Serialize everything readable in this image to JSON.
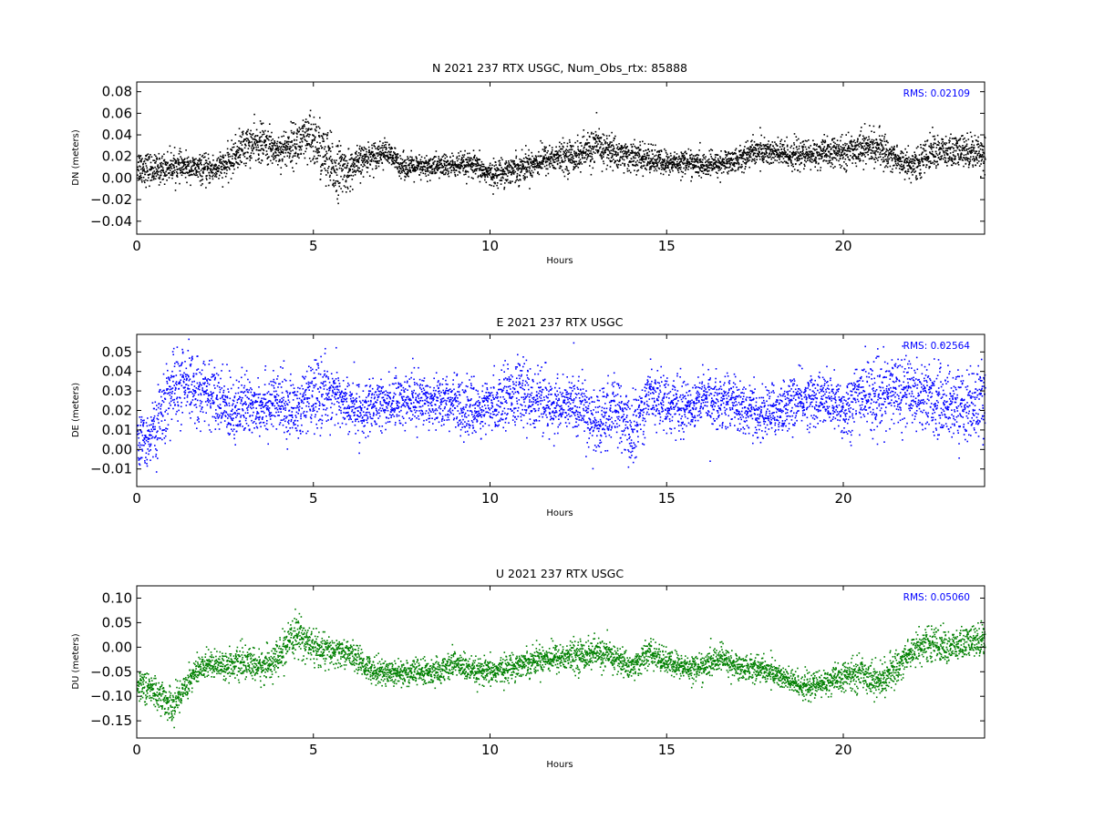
{
  "chart_data": [
    {
      "type": "scatter",
      "title": "N 2021 237 RTX  USGC, Num_Obs_rtx: 85888",
      "xlabel": "Hours",
      "ylabel": "DN (meters)",
      "xlim": [
        0,
        24
      ],
      "ylim": [
        -0.052,
        0.089
      ],
      "xticks": [
        0,
        5,
        10,
        15,
        20
      ],
      "yticks": [
        -0.04,
        -0.02,
        0.0,
        0.02,
        0.04,
        0.06,
        0.08
      ],
      "ytick_labels": [
        "−0.04",
        "−0.02",
        "0.00",
        "0.02",
        "0.04",
        "0.06",
        "0.08"
      ],
      "annotation": "RMS:  0.02109",
      "annotation_color": "#0000ff",
      "color": "#000000",
      "grid": false,
      "series": [
        {
          "hours": [
            0,
            0.5,
            1,
            1.5,
            2,
            2.5,
            3,
            3.5,
            4,
            4.5,
            5,
            5.5,
            6,
            6.5,
            7,
            7.5,
            8,
            8.5,
            9,
            9.5,
            10,
            10.5,
            11,
            11.5,
            12,
            12.5,
            13,
            13.5,
            14,
            14.5,
            15,
            15.5,
            16,
            16.5,
            17,
            17.5,
            18,
            18.5,
            19,
            19.5,
            20,
            20.5,
            21,
            21.5,
            22,
            22.5,
            23,
            23.5,
            24
          ],
          "center": [
            0.012,
            0.008,
            0.012,
            0.01,
            0.008,
            0.012,
            0.03,
            0.033,
            0.026,
            0.033,
            0.036,
            0.01,
            0.008,
            0.02,
            0.025,
            0.012,
            0.01,
            0.012,
            0.012,
            0.012,
            0.004,
            0.008,
            0.012,
            0.018,
            0.02,
            0.022,
            0.03,
            0.024,
            0.02,
            0.018,
            0.014,
            0.016,
            0.012,
            0.014,
            0.018,
            0.026,
            0.024,
            0.022,
            0.022,
            0.024,
            0.024,
            0.03,
            0.028,
            0.018,
            0.012,
            0.026,
            0.024,
            0.026,
            0.024
          ],
          "spread": [
            0.015,
            0.012,
            0.012,
            0.01,
            0.012,
            0.012,
            0.016,
            0.016,
            0.014,
            0.018,
            0.024,
            0.026,
            0.016,
            0.012,
            0.01,
            0.01,
            0.01,
            0.01,
            0.01,
            0.01,
            0.01,
            0.012,
            0.012,
            0.012,
            0.012,
            0.014,
            0.016,
            0.014,
            0.012,
            0.012,
            0.01,
            0.01,
            0.01,
            0.01,
            0.01,
            0.012,
            0.012,
            0.012,
            0.012,
            0.012,
            0.012,
            0.014,
            0.014,
            0.012,
            0.012,
            0.014,
            0.014,
            0.014,
            0.014
          ]
        }
      ]
    },
    {
      "type": "scatter",
      "title": "E 2021 237 RTX  USGC",
      "xlabel": "Hours",
      "ylabel": "DE (meters)",
      "xlim": [
        0,
        24
      ],
      "ylim": [
        -0.019,
        0.059
      ],
      "xticks": [
        0,
        5,
        10,
        15,
        20
      ],
      "yticks": [
        -0.01,
        0.0,
        0.01,
        0.02,
        0.03,
        0.04,
        0.05
      ],
      "ytick_labels": [
        "−0.01",
        "0.00",
        "0.01",
        "0.02",
        "0.03",
        "0.04",
        "0.05"
      ],
      "annotation": "RMS:  0.02564",
      "annotation_color": "#0000ff",
      "color": "#0000ff",
      "grid": false,
      "series": [
        {
          "hours": [
            0,
            0.5,
            1,
            1.5,
            2,
            2.5,
            3,
            3.5,
            4,
            4.5,
            5,
            5.5,
            6,
            6.5,
            7,
            7.5,
            8,
            8.5,
            9,
            9.5,
            10,
            10.5,
            11,
            11.5,
            12,
            12.5,
            13,
            13.5,
            14,
            14.5,
            15,
            15.5,
            16,
            16.5,
            17,
            17.5,
            18,
            18.5,
            19,
            19.5,
            20,
            20.5,
            21,
            21.5,
            22,
            22.5,
            23,
            23.5,
            24
          ],
          "center": [
            0.002,
            0.01,
            0.032,
            0.032,
            0.03,
            0.022,
            0.022,
            0.024,
            0.024,
            0.02,
            0.028,
            0.03,
            0.022,
            0.02,
            0.024,
            0.026,
            0.026,
            0.026,
            0.024,
            0.02,
            0.022,
            0.03,
            0.028,
            0.024,
            0.022,
            0.024,
            0.012,
            0.022,
            0.008,
            0.03,
            0.024,
            0.022,
            0.026,
            0.026,
            0.024,
            0.018,
            0.02,
            0.024,
            0.026,
            0.026,
            0.02,
            0.03,
            0.026,
            0.032,
            0.03,
            0.026,
            0.024,
            0.022,
            0.026
          ],
          "spread": [
            0.012,
            0.014,
            0.018,
            0.016,
            0.014,
            0.016,
            0.014,
            0.014,
            0.014,
            0.014,
            0.016,
            0.014,
            0.012,
            0.012,
            0.012,
            0.012,
            0.012,
            0.012,
            0.012,
            0.012,
            0.012,
            0.014,
            0.014,
            0.014,
            0.012,
            0.014,
            0.016,
            0.014,
            0.016,
            0.014,
            0.012,
            0.012,
            0.012,
            0.012,
            0.012,
            0.012,
            0.012,
            0.012,
            0.012,
            0.012,
            0.014,
            0.016,
            0.016,
            0.016,
            0.016,
            0.016,
            0.016,
            0.016,
            0.016
          ]
        }
      ]
    },
    {
      "type": "scatter",
      "title": "U 2021 237 RTX  USGC",
      "xlabel": "Hours",
      "ylabel": "DU (meters)",
      "xlim": [
        0,
        24
      ],
      "ylim": [
        -0.185,
        0.125
      ],
      "xticks": [
        0,
        5,
        10,
        15,
        20
      ],
      "yticks": [
        -0.15,
        -0.1,
        -0.05,
        0.0,
        0.05,
        0.1
      ],
      "ytick_labels": [
        "−0.15",
        "−0.10",
        "−0.05",
        "0.00",
        "0.05",
        "0.10"
      ],
      "annotation": "RMS:  0.05060",
      "annotation_color": "#0000ff",
      "color": "#008000",
      "grid": false,
      "series": [
        {
          "hours": [
            0,
            0.5,
            1,
            1.5,
            2,
            2.5,
            3,
            3.5,
            4,
            4.5,
            5,
            5.5,
            6,
            6.5,
            7,
            7.5,
            8,
            8.5,
            9,
            9.5,
            10,
            10.5,
            11,
            11.5,
            12,
            12.5,
            13,
            13.5,
            14,
            14.5,
            15,
            15.5,
            16,
            16.5,
            17,
            17.5,
            18,
            18.5,
            19,
            19.5,
            20,
            20.5,
            21,
            21.5,
            22,
            22.5,
            23,
            23.5,
            24
          ],
          "center": [
            -0.07,
            -0.09,
            -0.12,
            -0.06,
            -0.03,
            -0.035,
            -0.03,
            -0.04,
            -0.02,
            0.03,
            0.0,
            -0.01,
            -0.01,
            -0.04,
            -0.05,
            -0.05,
            -0.05,
            -0.05,
            -0.03,
            -0.05,
            -0.05,
            -0.04,
            -0.03,
            -0.02,
            -0.02,
            -0.015,
            -0.01,
            -0.02,
            -0.04,
            -0.01,
            -0.03,
            -0.04,
            -0.04,
            -0.02,
            -0.04,
            -0.04,
            -0.05,
            -0.07,
            -0.08,
            -0.07,
            -0.06,
            -0.05,
            -0.07,
            -0.04,
            0.0,
            0.01,
            0.0,
            0.01,
            0.02
          ],
          "spread": [
            0.03,
            0.03,
            0.03,
            0.028,
            0.024,
            0.024,
            0.028,
            0.03,
            0.03,
            0.034,
            0.034,
            0.028,
            0.024,
            0.024,
            0.024,
            0.024,
            0.024,
            0.024,
            0.024,
            0.024,
            0.024,
            0.024,
            0.024,
            0.026,
            0.026,
            0.028,
            0.028,
            0.026,
            0.024,
            0.024,
            0.024,
            0.024,
            0.024,
            0.024,
            0.024,
            0.024,
            0.024,
            0.024,
            0.024,
            0.024,
            0.026,
            0.03,
            0.03,
            0.03,
            0.03,
            0.03,
            0.03,
            0.03,
            0.03
          ]
        }
      ]
    }
  ]
}
